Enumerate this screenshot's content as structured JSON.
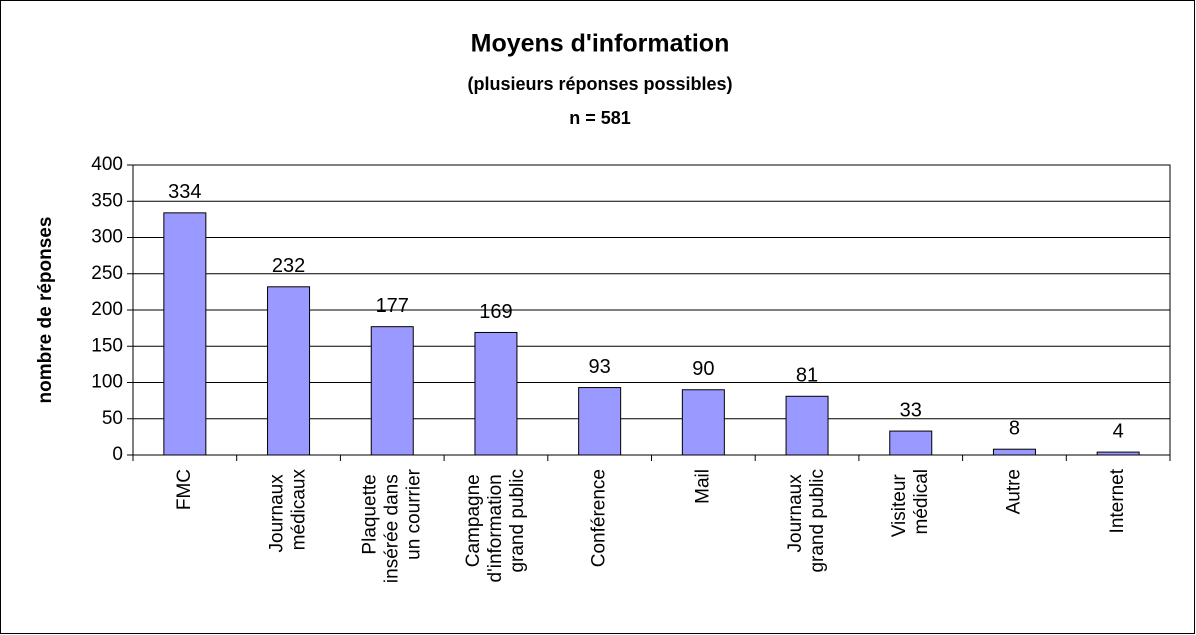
{
  "chart_data": {
    "type": "bar",
    "title": "Moyens d'information",
    "subtitle": "(plusieurs réponses possibles)",
    "note": "n = 581",
    "y_label": "nombre de réponses",
    "categories": [
      "FMC",
      "Journaux médicaux",
      "Plaquette insérée dans un courrier",
      "Campagne d'information grand public",
      "Conférence",
      "Mail",
      "Journaux grand public",
      "Visiteur médical",
      "Autre",
      "Internet"
    ],
    "values": [
      334,
      232,
      177,
      169,
      93,
      90,
      81,
      33,
      8,
      4
    ],
    "color": "#9999ff",
    "ylim": [
      0,
      400
    ],
    "yticks": [
      0,
      50,
      100,
      150,
      200,
      250,
      300,
      350,
      400
    ],
    "grid": true
  }
}
